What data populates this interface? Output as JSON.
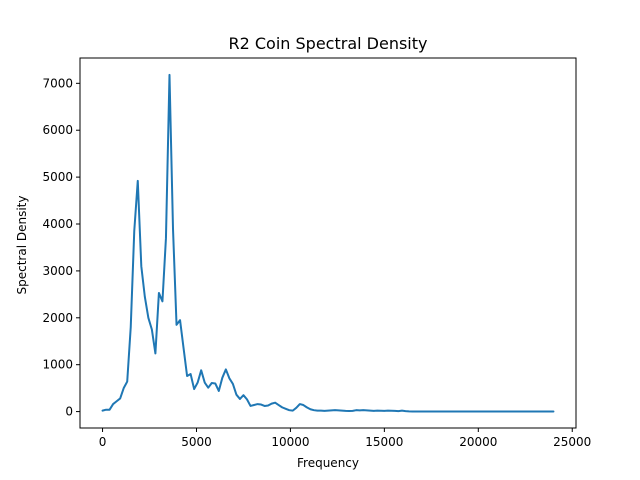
{
  "chart_data": {
    "type": "line",
    "title": "R2 Coin Spectral Density",
    "xlabel": "Frequency",
    "ylabel": "Spectral Density",
    "xlim": [
      -1200,
      25200
    ],
    "ylim": [
      -350,
      7540
    ],
    "xticks": [
      0,
      5000,
      10000,
      15000,
      20000,
      25000
    ],
    "xtick_labels": [
      "0",
      "5000",
      "10000",
      "15000",
      "20000",
      "25000"
    ],
    "yticks": [
      0,
      1000,
      2000,
      3000,
      4000,
      5000,
      6000,
      7000
    ],
    "ytick_labels": [
      "0",
      "1000",
      "2000",
      "3000",
      "4000",
      "5000",
      "6000",
      "7000"
    ],
    "grid": false,
    "line_color": "#1f77b4",
    "series": [
      {
        "x": [
          0,
          188,
          375,
          563,
          750,
          938,
          1125,
          1313,
          1500,
          1688,
          1875,
          2063,
          2250,
          2438,
          2625,
          2813,
          3000,
          3188,
          3375,
          3563,
          3750,
          3938,
          4125,
          4313,
          4500,
          4688,
          4875,
          5063,
          5250,
          5438,
          5625,
          5813,
          6000,
          6188,
          6375,
          6563,
          6750,
          6938,
          7125,
          7313,
          7500,
          7688,
          7875,
          8063,
          8250,
          8438,
          8625,
          8813,
          9000,
          9188,
          9375,
          9563,
          9750,
          9938,
          10125,
          10313,
          10500,
          10688,
          10875,
          11063,
          11250,
          11438,
          11625,
          11813,
          12000,
          12188,
          12375,
          12563,
          12750,
          12938,
          13125,
          13313,
          13500,
          13688,
          13875,
          14063,
          14250,
          14438,
          14625,
          14813,
          15000,
          15188,
          15375,
          15563,
          15750,
          15938,
          16125,
          16313,
          16500,
          17000,
          17500,
          18000,
          18500,
          19000,
          19500,
          20000,
          20500,
          21000,
          21500,
          22000,
          22500,
          23000,
          23500,
          24000
        ],
        "y": [
          20,
          40,
          40,
          160,
          220,
          280,
          500,
          640,
          1800,
          3850,
          4920,
          3100,
          2450,
          2000,
          1750,
          1240,
          2530,
          2350,
          3700,
          7180,
          3900,
          1850,
          1950,
          1350,
          760,
          800,
          480,
          620,
          880,
          620,
          510,
          610,
          600,
          440,
          720,
          900,
          710,
          590,
          360,
          270,
          350,
          260,
          120,
          140,
          160,
          150,
          120,
          130,
          170,
          190,
          140,
          90,
          60,
          30,
          20,
          80,
          160,
          140,
          90,
          50,
          30,
          20,
          20,
          15,
          20,
          25,
          30,
          25,
          20,
          15,
          12,
          15,
          30,
          25,
          30,
          25,
          20,
          15,
          20,
          18,
          15,
          20,
          18,
          15,
          10,
          20,
          10,
          5,
          3,
          2,
          2,
          2,
          2,
          2,
          2,
          2,
          2,
          2,
          2,
          2,
          2,
          2,
          2,
          2
        ]
      }
    ]
  }
}
